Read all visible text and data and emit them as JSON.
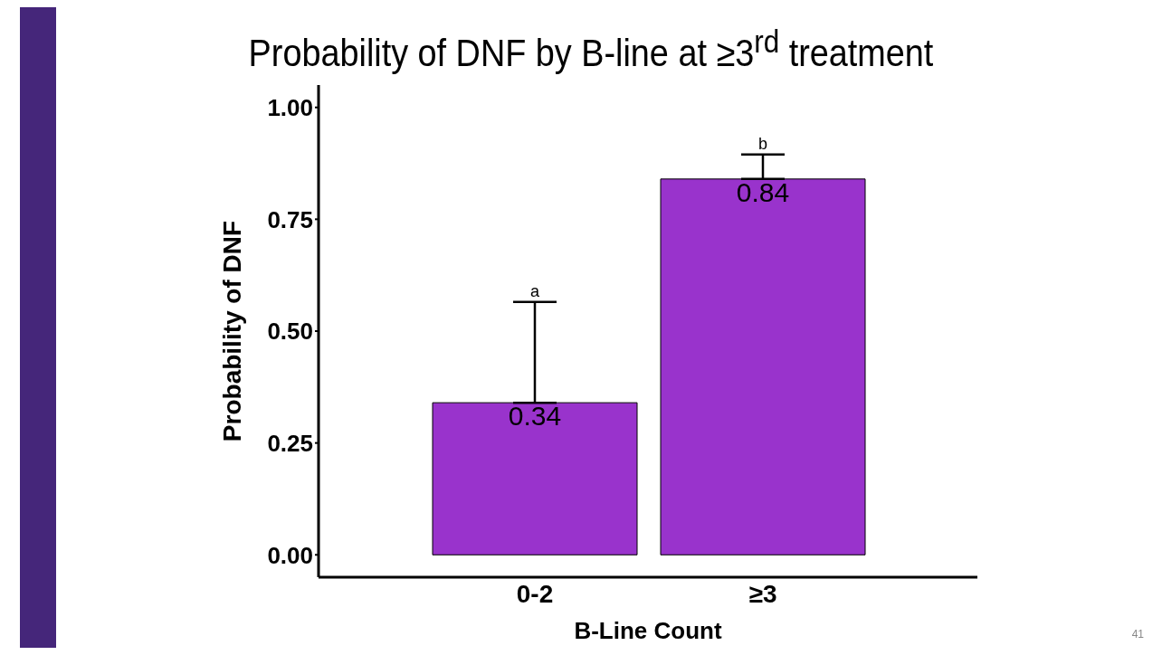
{
  "chart_data": {
    "type": "bar",
    "title": "Probability of DNF by B-line at ≥3$^{rd}$ treatment",
    "xlabel": "B-Line Count",
    "ylabel": "Probability of DNF",
    "categories": [
      "0-2",
      "≥3"
    ],
    "values": [
      0.34,
      0.84
    ],
    "errors": [
      [
        0.34,
        0.565
      ],
      [
        0.84,
        0.895
      ]
    ],
    "color": "#9933cc",
    "data_labels": true,
    "ylim": [
      -0.05,
      1.05
    ],
    "yticks": [
      {
        "value": 0,
        "label": "0.00"
      },
      {
        "value": 0.25,
        "label": "0.25"
      },
      {
        "value": 0.5,
        "label": "0.50"
      },
      {
        "value": 0.75,
        "label": "0.75"
      },
      {
        "value": 1,
        "label": "1.00"
      }
    ],
    "grid": false,
    "legend": false,
    "annotations": [
      "a",
      "b",
      "41"
    ]
  }
}
